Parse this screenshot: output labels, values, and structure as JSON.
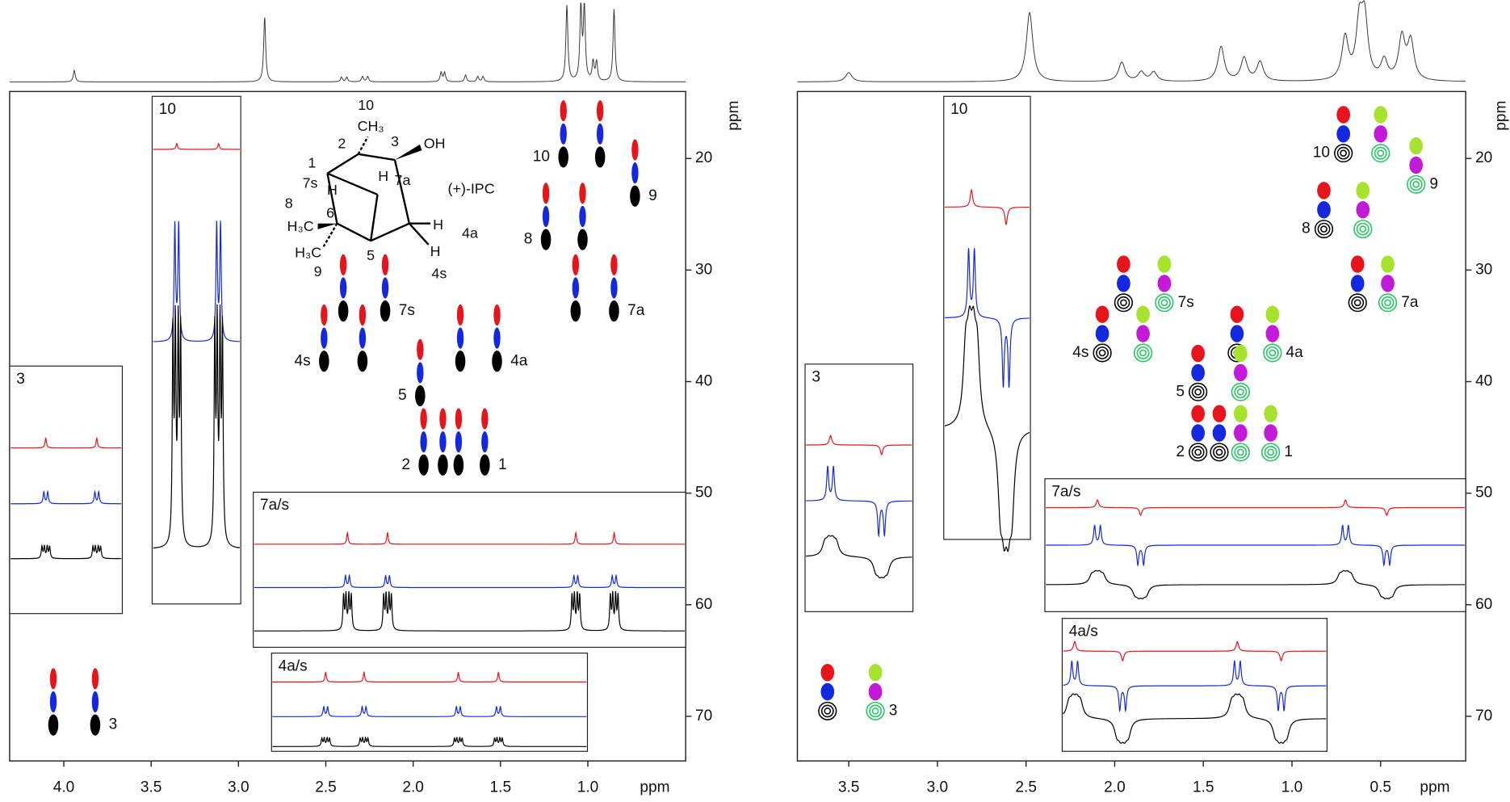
{
  "panels": [
    {
      "xlim": [
        4.31,
        0.44
      ],
      "xticks": [
        {
          "value": 4,
          "label": "4.0"
        },
        3.5,
        {
          "value": 3,
          "label": "3.0"
        },
        2.5,
        {
          "value": 2,
          "label": "2.0"
        },
        1.5,
        {
          "value": 1,
          "label": "1.0"
        }
      ],
      "ylim": [
        14,
        74
      ],
      "yticks": [
        20,
        30,
        40,
        50,
        60,
        70
      ],
      "xlabel": "ppm",
      "ylabel": "ppm",
      "colors": [
        "#e8141c",
        "#1428e0",
        "#000000"
      ],
      "projection": [
        {
          "x": 3.94,
          "h": 15
        },
        {
          "x": 2.85,
          "h": 85
        },
        {
          "x": 2.41,
          "h": 6
        },
        {
          "x": 2.38,
          "h": 6
        },
        {
          "x": 2.29,
          "h": 7
        },
        {
          "x": 2.26,
          "h": 7
        },
        {
          "x": 1.84,
          "h": 12
        },
        {
          "x": 1.82,
          "h": 12
        },
        {
          "x": 1.7,
          "h": 9
        },
        {
          "x": 1.63,
          "h": 7
        },
        {
          "x": 1.6,
          "h": 7
        },
        {
          "x": 1.12,
          "h": 100
        },
        {
          "x": 1.04,
          "h": 95
        },
        {
          "x": 1.02,
          "h": 95
        },
        {
          "x": 0.97,
          "h": 25
        },
        {
          "x": 0.95,
          "h": 25
        },
        {
          "x": 0.85,
          "h": 95
        }
      ],
      "peaks": [
        {
          "label": "10",
          "x": [
            1.14,
            0.93
          ],
          "y": 17.8
        },
        {
          "label": "9",
          "x": [
            0.73
          ],
          "y": 21.3
        },
        {
          "label": "8",
          "x": [
            1.24,
            1.03
          ],
          "y": 25.2
        },
        {
          "label": "7a",
          "x": [
            1.07,
            0.85
          ],
          "y": 31.6
        },
        {
          "label": "7s",
          "x": [
            2.4,
            2.16
          ],
          "y": 31.6
        },
        {
          "label": "4s",
          "x": [
            2.51,
            2.29
          ],
          "y": 36.1
        },
        {
          "label": "4a",
          "x": [
            1.73,
            1.52
          ],
          "y": 36.1
        },
        {
          "label": "5",
          "x": [
            1.96
          ],
          "y": 39.2
        },
        {
          "label": "2",
          "x": [
            1.94,
            1.74
          ],
          "y": 45.4
        },
        {
          "label": "1",
          "x": [
            1.83,
            1.59
          ],
          "y": 45.4
        },
        {
          "label": "3",
          "x": [
            4.06,
            3.82
          ],
          "y": 68.7
        }
      ],
      "insets": [
        {
          "label": "10",
          "xlim": [
            1.22,
            0.86
          ],
          "peaks": [
            {
              "x": 1.12,
              "h": 1
            },
            {
              "x": 0.95,
              "h": 1
            }
          ]
        },
        {
          "label": "3",
          "xlim": [
            4.23,
            3.7
          ],
          "peaks": [
            {
              "x": 4.06,
              "h": 1
            },
            {
              "x": 3.82,
              "h": 1
            }
          ]
        },
        {
          "label": "7a/s",
          "xlim": [
            2.92,
            0.44
          ],
          "peaks": [
            {
              "x": 2.38,
              "h": 1
            },
            {
              "x": 2.15,
              "h": 1
            },
            {
              "x": 1.07,
              "h": 1
            },
            {
              "x": 0.85,
              "h": 1
            }
          ]
        },
        {
          "label": "4a/s",
          "xlim": [
            2.81,
            1.0
          ],
          "peaks": [
            {
              "x": 2.5,
              "h": 1
            },
            {
              "x": 2.28,
              "h": 1
            },
            {
              "x": 1.74,
              "h": 1
            },
            {
              "x": 1.51,
              "h": 1
            }
          ]
        }
      ]
    },
    {
      "xlim": [
        3.79,
        0.02
      ],
      "xticks": [
        3.5,
        {
          "value": 3,
          "label": "3.0"
        },
        2.5,
        {
          "value": 2,
          "label": "2.0"
        },
        1.5,
        {
          "value": 1,
          "label": "1.0"
        },
        0.5
      ],
      "ylim": [
        14,
        74
      ],
      "yticks": [
        20,
        30,
        40,
        50,
        60,
        70
      ],
      "xlabel": "ppm",
      "ylabel": "ppm",
      "colors": [
        "#e8141c",
        "#1428e0",
        "#000000"
      ],
      "colors2": [
        "#a6e22e",
        "#c21ad8",
        "#22c55e"
      ],
      "projection": [
        {
          "x": 3.5,
          "h": 12
        },
        {
          "x": 2.48,
          "h": 90
        },
        {
          "x": 1.96,
          "h": 25
        },
        {
          "x": 1.85,
          "h": 12
        },
        {
          "x": 1.78,
          "h": 12
        },
        {
          "x": 1.4,
          "h": 45
        },
        {
          "x": 1.27,
          "h": 30
        },
        {
          "x": 1.18,
          "h": 25
        },
        {
          "x": 0.7,
          "h": 55
        },
        {
          "x": 0.62,
          "h": 70
        },
        {
          "x": 0.59,
          "h": 75
        },
        {
          "x": 0.48,
          "h": 25
        },
        {
          "x": 0.38,
          "h": 55
        },
        {
          "x": 0.33,
          "h": 50
        }
      ],
      "peaks": [
        {
          "label": "10",
          "x": [
            0.71
          ],
          "x2": [
            0.5
          ],
          "y": 17.8
        },
        {
          "label": "9",
          "x": [],
          "x2": [
            0.3
          ],
          "y": 20.6
        },
        {
          "label": "8",
          "x": [
            0.82
          ],
          "x2": [
            0.6
          ],
          "y": 24.6
        },
        {
          "label": "7a",
          "x": [
            0.63
          ],
          "x2": [
            0.46
          ],
          "y": 31.2
        },
        {
          "label": "7s",
          "x": [
            1.95
          ],
          "x2": [
            1.72
          ],
          "y": 31.2
        },
        {
          "label": "4s",
          "x": [
            2.07
          ],
          "x2": [
            1.84
          ],
          "y": 35.7
        },
        {
          "label": "4a",
          "x": [
            1.31
          ],
          "x2": [
            1.11
          ],
          "y": 35.7
        },
        {
          "label": "5",
          "x": [
            1.53
          ],
          "x2": [
            1.29
          ],
          "y": 39.2
        },
        {
          "label": "2",
          "x": [
            1.53,
            1.41
          ],
          "x2": [],
          "y": 44.6
        },
        {
          "label": "1",
          "x": [],
          "x2": [
            1.29,
            1.12
          ],
          "y": 44.6
        },
        {
          "label": "3",
          "x": [
            3.62
          ],
          "x2": [
            3.35
          ],
          "y": 67.8
        }
      ],
      "insets": [
        {
          "label": "10",
          "xlim": [
            2.98,
            2.48
          ],
          "peaks": [
            {
              "x": 2.82,
              "h": 1
            },
            {
              "x": 2.62,
              "h": -1
            }
          ]
        },
        {
          "label": "3",
          "xlim": [
            3.75,
            3.2
          ],
          "peaks": [
            {
              "x": 3.62,
              "h": 1
            },
            {
              "x": 3.36,
              "h": -1
            }
          ]
        },
        {
          "label": "7a/s",
          "xlim": [
            2.23,
            -0.01
          ],
          "peaks": [
            {
              "x": 1.95,
              "h": 1
            },
            {
              "x": 1.72,
              "h": -1
            },
            {
              "x": 0.63,
              "h": 1
            },
            {
              "x": 0.41,
              "h": -1
            }
          ]
        },
        {
          "label": "4a/s",
          "xlim": [
            2.14,
            0.87
          ],
          "peaks": [
            {
              "x": 2.08,
              "h": 1
            },
            {
              "x": 1.85,
              "h": -1
            },
            {
              "x": 1.3,
              "h": 1
            },
            {
              "x": 1.09,
              "h": -1
            }
          ]
        }
      ]
    }
  ],
  "structure": {
    "labels": [
      "10",
      "CH₃",
      "2",
      "3",
      "OH",
      "1",
      "7s",
      "H",
      "H",
      "7a",
      "(+)-IPC",
      "8",
      "H₃C",
      "6",
      "H",
      "4a",
      "H₃C",
      "5",
      "H",
      "4s",
      "9"
    ]
  }
}
